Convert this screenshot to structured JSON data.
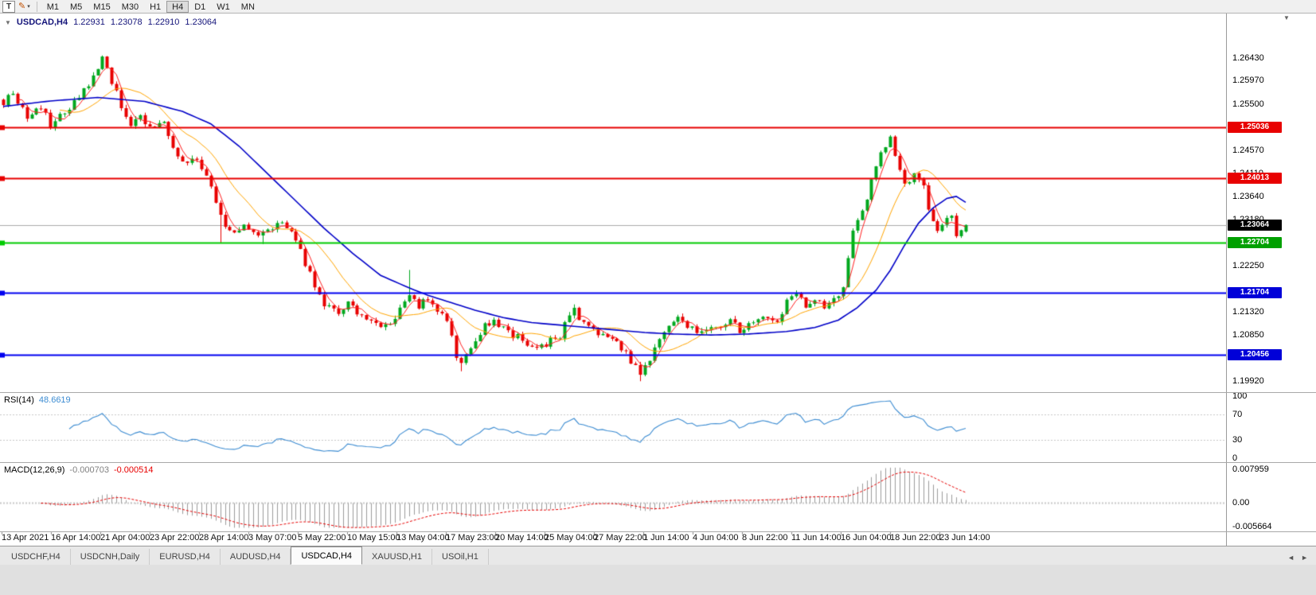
{
  "toolbar": {
    "pointer_tool_label": "T",
    "pencil_icon": "✎",
    "dropdown_arrow": "▾",
    "timeframes": [
      "M1",
      "M5",
      "M15",
      "M30",
      "H1",
      "H4",
      "D1",
      "W1",
      "MN"
    ],
    "active_timeframe": "H4"
  },
  "window": {
    "collapse_arrow": "▼",
    "scroll_marker": "▼"
  },
  "header": {
    "symbol_period": "USDCAD,H4",
    "open": "1.22931",
    "high": "1.23078",
    "low": "1.22910",
    "close": "1.23064"
  },
  "price_axis": {
    "ticks": [
      {
        "label": "1.26430",
        "price": 1.2643
      },
      {
        "label": "1.25970",
        "price": 1.2597
      },
      {
        "label": "1.25500",
        "price": 1.255
      },
      {
        "label": "1.24570",
        "price": 1.2457
      },
      {
        "label": "1.24110",
        "price": 1.2411
      },
      {
        "label": "1.23640",
        "price": 1.2364
      },
      {
        "label": "1.23180",
        "price": 1.2318
      },
      {
        "label": "1.22250",
        "price": 1.2225
      },
      {
        "label": "1.21320",
        "price": 1.2132
      },
      {
        "label": "1.20850",
        "price": 1.2085
      },
      {
        "label": "1.19920",
        "price": 1.1992
      }
    ],
    "tags": [
      {
        "label": "1.25036",
        "price": 1.25036,
        "bg": "#E80000"
      },
      {
        "label": "1.24013",
        "price": 1.24013,
        "bg": "#E80000"
      },
      {
        "label": "1.23064",
        "price": 1.23064,
        "bg": "#000000"
      },
      {
        "label": "1.22704",
        "price": 1.22704,
        "bg": "#00A000"
      },
      {
        "label": "1.21704",
        "price": 1.21704,
        "bg": "#0000D8"
      },
      {
        "label": "1.20456",
        "price": 1.20456,
        "bg": "#0000D8"
      }
    ]
  },
  "time_axis": {
    "labels": [
      "13 Apr 2021",
      "16 Apr 14:00",
      "21 Apr 04:00",
      "23 Apr 22:00",
      "28 Apr 14:00",
      "3 May 07:00",
      "5 May 22:00",
      "10 May 15:00",
      "13 May 04:00",
      "17 May 23:00",
      "20 May 14:00",
      "25 May 04:00",
      "27 May 22:00",
      "1 Jun 14:00",
      "4 Jun 04:00",
      "8 Jun 22:00",
      "11 Jun 14:00",
      "16 Jun 04:00",
      "18 Jun 22:00",
      "23 Jun 14:00"
    ]
  },
  "rsi_panel": {
    "label": "RSI(14)",
    "value": "48.6619",
    "ticks": [
      "100",
      "70",
      "30",
      "0"
    ],
    "tick_values": [
      100,
      70,
      30,
      0
    ],
    "levels": [
      70,
      30
    ]
  },
  "macd_panel": {
    "label": "MACD(12,26,9)",
    "value_main": "-0.000703",
    "value_signal": "-0.000514",
    "ticks": [
      {
        "label": "0.007959",
        "value": 0.007959
      },
      {
        "label": "0.00",
        "value": 0
      },
      {
        "label": "-0.005664",
        "value": -0.005664
      }
    ]
  },
  "tabs": {
    "items": [
      "USDCHF,H4",
      "USDCNH,Daily",
      "EURUSD,H4",
      "AUDUSD,H4",
      "USDCAD,H4",
      "XAUUSD,H1",
      "USOil,H1"
    ],
    "active": "USDCAD,H4",
    "scroll_left": "◄",
    "scroll_right": "►"
  },
  "colors": {
    "bull": "#00A81E",
    "bear": "#E80000",
    "ma_fast": "#FF2020",
    "ma_mid": "#FFA500",
    "ma_slow": "#0000C8",
    "rsi_line": "#3C8CD2",
    "macd_hist": "#9C9C9C",
    "macd_signal": "#E80000",
    "current_line": "#ACACAC",
    "level_red": "#E80000",
    "level_green": "#00CC00",
    "level_blue": "#0000F0"
  },
  "chart_data": {
    "type": "candlestick",
    "symbol": "USDCAD",
    "period": "H4",
    "bars": 205,
    "price_range": [
      1.197,
      1.2732
    ],
    "last_candle": {
      "open": 1.22931,
      "high": 1.23078,
      "low": 1.2291,
      "close": 1.23064
    },
    "current_price": 1.23064,
    "horizontal_levels": [
      {
        "price": 1.25036,
        "color": "#E80000"
      },
      {
        "price": 1.24013,
        "color": "#E80000"
      },
      {
        "price": 1.22704,
        "color": "#00CC00"
      },
      {
        "price": 1.21704,
        "color": "#0000F0"
      },
      {
        "price": 1.20456,
        "color": "#0000F0"
      }
    ],
    "price_path_anchors": [
      [
        0,
        1.2555
      ],
      [
        2,
        1.2572
      ],
      [
        5,
        1.252
      ],
      [
        8,
        1.2548
      ],
      [
        10,
        1.2505
      ],
      [
        13,
        1.2538
      ],
      [
        16,
        1.2562
      ],
      [
        19,
        1.26
      ],
      [
        21,
        1.2638
      ],
      [
        23,
        1.2598
      ],
      [
        25,
        1.2545
      ],
      [
        27,
        1.2512
      ],
      [
        29,
        1.2532
      ],
      [
        31,
        1.2498
      ],
      [
        34,
        1.2512
      ],
      [
        36,
        1.2462
      ],
      [
        39,
        1.2428
      ],
      [
        41,
        1.2444
      ],
      [
        43,
        1.2404
      ],
      [
        45,
        1.2348
      ],
      [
        47,
        1.23
      ],
      [
        49,
        1.2286
      ],
      [
        51,
        1.2302
      ],
      [
        54,
        1.228
      ],
      [
        57,
        1.2298
      ],
      [
        59,
        1.2314
      ],
      [
        61,
        1.2292
      ],
      [
        63,
        1.2252
      ],
      [
        66,
        1.2182
      ],
      [
        68,
        1.215
      ],
      [
        71,
        1.2132
      ],
      [
        73,
        1.2146
      ],
      [
        76,
        1.2126
      ],
      [
        78,
        1.211
      ],
      [
        81,
        1.21
      ],
      [
        84,
        1.2134
      ],
      [
        86,
        1.2162
      ],
      [
        88,
        1.2146
      ],
      [
        90,
        1.2154
      ],
      [
        92,
        1.2136
      ],
      [
        94,
        1.2118
      ],
      [
        96,
        1.2042
      ],
      [
        97,
        1.2028
      ],
      [
        99,
        1.2064
      ],
      [
        101,
        1.2092
      ],
      [
        103,
        1.211
      ],
      [
        106,
        1.2104
      ],
      [
        108,
        1.2086
      ],
      [
        111,
        1.207
      ],
      [
        113,
        1.206
      ],
      [
        116,
        1.2072
      ],
      [
        118,
        1.2084
      ],
      [
        120,
        1.2124
      ],
      [
        121,
        1.2132
      ],
      [
        123,
        1.2104
      ],
      [
        125,
        1.209
      ],
      [
        128,
        1.2078
      ],
      [
        130,
        1.2068
      ],
      [
        132,
        1.2048
      ],
      [
        134,
        1.202
      ],
      [
        135,
        1.2
      ],
      [
        137,
        1.2036
      ],
      [
        139,
        1.2072
      ],
      [
        141,
        1.2102
      ],
      [
        143,
        1.2118
      ],
      [
        146,
        1.2096
      ],
      [
        148,
        1.2088
      ],
      [
        151,
        1.2102
      ],
      [
        154,
        1.2114
      ],
      [
        156,
        1.2096
      ],
      [
        159,
        1.211
      ],
      [
        161,
        1.2122
      ],
      [
        164,
        1.2106
      ],
      [
        166,
        1.215
      ],
      [
        168,
        1.2172
      ],
      [
        170,
        1.2148
      ],
      [
        172,
        1.2158
      ],
      [
        174,
        1.2142
      ],
      [
        176,
        1.2152
      ],
      [
        178,
        1.218
      ],
      [
        179,
        1.2238
      ],
      [
        180,
        1.2292
      ],
      [
        182,
        1.2338
      ],
      [
        184,
        1.2392
      ],
      [
        186,
        1.2452
      ],
      [
        188,
        1.248
      ],
      [
        189,
        1.2446
      ],
      [
        191,
        1.2396
      ],
      [
        193,
        1.2404
      ],
      [
        195,
        1.238
      ],
      [
        196,
        1.2336
      ],
      [
        198,
        1.2292
      ],
      [
        199,
        1.2308
      ],
      [
        201,
        1.2324
      ],
      [
        202,
        1.229
      ],
      [
        204,
        1.23064
      ]
    ],
    "wick_spikes": [
      [
        21,
        "high",
        1.2643
      ],
      [
        46,
        "low",
        1.227
      ],
      [
        55,
        "low",
        1.2268
      ],
      [
        86,
        "high",
        1.2216
      ],
      [
        97,
        "low",
        1.2012
      ],
      [
        135,
        "low",
        1.1992
      ],
      [
        188,
        "high",
        1.2487
      ]
    ],
    "slow_ma_anchors": [
      [
        0,
        1.2545
      ],
      [
        10,
        1.2556
      ],
      [
        20,
        1.2563
      ],
      [
        30,
        1.2555
      ],
      [
        38,
        1.2535
      ],
      [
        44,
        1.251
      ],
      [
        50,
        1.2465
      ],
      [
        56,
        1.241
      ],
      [
        62,
        1.2355
      ],
      [
        68,
        1.23
      ],
      [
        74,
        1.225
      ],
      [
        80,
        1.2205
      ],
      [
        86,
        1.218
      ],
      [
        90,
        1.2165
      ],
      [
        95,
        1.215
      ],
      [
        100,
        1.2135
      ],
      [
        106,
        1.212
      ],
      [
        112,
        1.211
      ],
      [
        118,
        1.2105
      ],
      [
        124,
        1.21
      ],
      [
        130,
        1.2095
      ],
      [
        136,
        1.209
      ],
      [
        142,
        1.2087
      ],
      [
        150,
        1.2085
      ],
      [
        158,
        1.2087
      ],
      [
        166,
        1.2092
      ],
      [
        172,
        1.21
      ],
      [
        177,
        1.2115
      ],
      [
        181,
        1.214
      ],
      [
        185,
        1.2175
      ],
      [
        188,
        1.2215
      ],
      [
        191,
        1.2265
      ],
      [
        194,
        1.231
      ],
      [
        197,
        1.234
      ],
      [
        200,
        1.236
      ],
      [
        202,
        1.2364
      ],
      [
        204,
        1.2352
      ]
    ],
    "ma_periods": {
      "fast": 4,
      "mid": 13
    },
    "noise": 0.0008,
    "wick": 0.0007,
    "indicators": {
      "rsi_period": 14,
      "macd": [
        12,
        26,
        9
      ]
    }
  }
}
